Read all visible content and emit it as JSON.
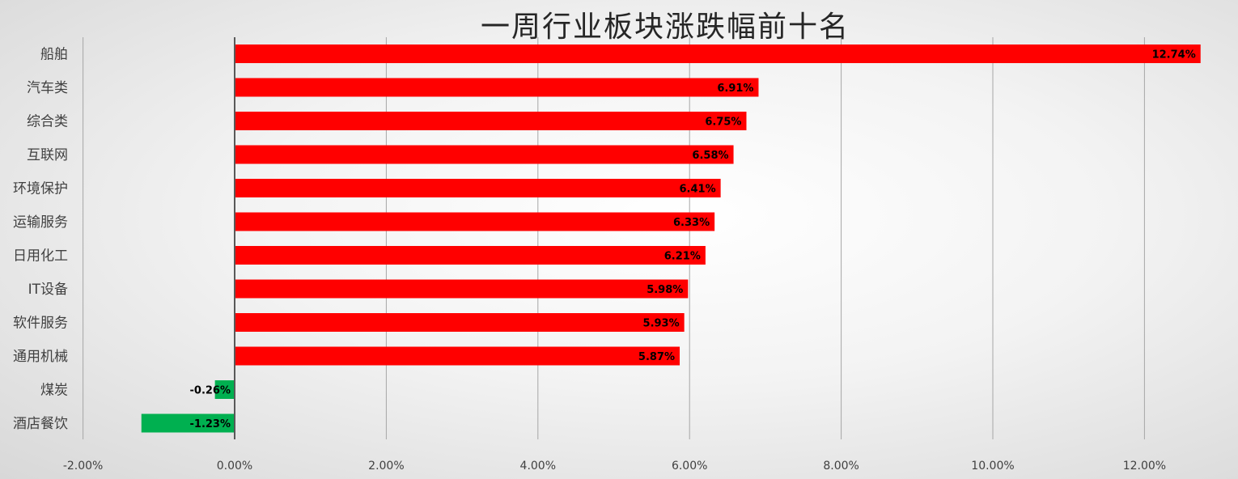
{
  "chart_data": {
    "type": "bar",
    "orientation": "horizontal",
    "title": "一周行业板块涨跌幅前十名",
    "categories": [
      "船舶",
      "汽车类",
      "综合类",
      "互联网",
      "环境保护",
      "运输服务",
      "日用化工",
      "IT设备",
      "软件服务",
      "通用机械",
      "煤炭",
      "酒店餐饮"
    ],
    "values": [
      12.74,
      6.91,
      6.75,
      6.58,
      6.41,
      6.33,
      6.21,
      5.98,
      5.93,
      5.87,
      -0.26,
      -1.23
    ],
    "data_labels": [
      "12.74%",
      "6.91%",
      "6.75%",
      "6.58%",
      "6.41%",
      "6.33%",
      "6.21%",
      "5.98%",
      "5.93%",
      "5.87%",
      "-0.26%",
      "-1.23%"
    ],
    "x_ticks": [
      -2,
      0,
      2,
      4,
      6,
      8,
      10,
      12
    ],
    "x_tick_labels": [
      "-2.00%",
      "0.00%",
      "2.00%",
      "4.00%",
      "6.00%",
      "8.00%",
      "10.00%",
      "12.00%"
    ],
    "xlim": [
      -2,
      13
    ],
    "grid": "vertical",
    "legend": "none",
    "colors": {
      "positive": "#ff0000",
      "negative": "#00b050"
    }
  }
}
